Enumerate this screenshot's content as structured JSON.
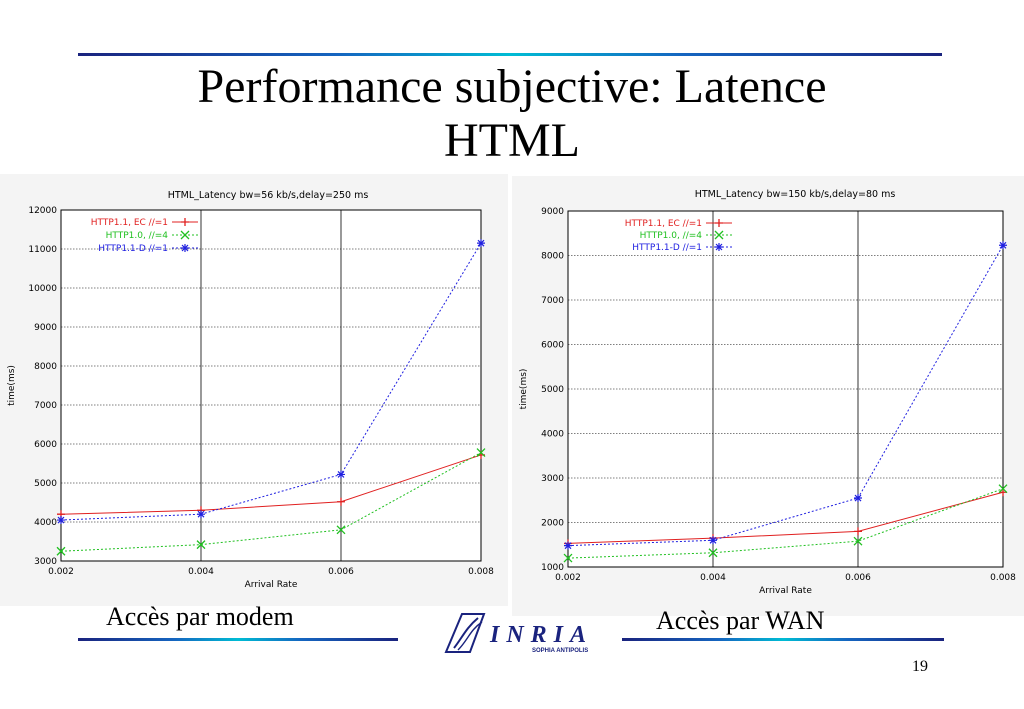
{
  "slide": {
    "title_line1": "Performance subjective: Latence",
    "title_line2": "HTML",
    "caption_left": "Accès par modem",
    "caption_right": "Accès par WAN",
    "page_number": "19",
    "logo_text": "INRIA",
    "logo_subtext": "SOPHIA ANTIPOLIS"
  },
  "colors": {
    "ec": "#e02020",
    "http10": "#20c020",
    "http11d": "#2020e0",
    "rule_dark": "#1a237e",
    "rule_light": "#00bcd4"
  },
  "chart_data": [
    {
      "type": "line",
      "title": "HTML_Latency  bw=56 kb/s,delay=250 ms",
      "xlabel": "Arrival Rate",
      "ylabel": "time(ms)",
      "xlim": [
        0.002,
        0.008
      ],
      "ylim": [
        3000,
        12000
      ],
      "x": [
        0.002,
        0.004,
        0.006,
        0.008
      ],
      "x_ticks": [
        "0.002",
        "0.004",
        "0.006",
        "0.008"
      ],
      "y_ticks": [
        "3000",
        "4000",
        "5000",
        "6000",
        "7000",
        "8000",
        "9000",
        "10000",
        "11000",
        "12000"
      ],
      "grid": true,
      "legend": "top-left",
      "series": [
        {
          "name": "HTTP1.1, EC //=1",
          "values": [
            4200,
            4300,
            4520,
            5720
          ],
          "color": "#e02020",
          "marker": "+"
        },
        {
          "name": "HTTP1.0, //=4",
          "values": [
            3250,
            3420,
            3800,
            5780
          ],
          "color": "#20c020",
          "marker": "x"
        },
        {
          "name": "HTTP1.1-D //=1",
          "values": [
            4050,
            4200,
            5220,
            11150
          ],
          "color": "#2020e0",
          "marker": "*"
        }
      ]
    },
    {
      "type": "line",
      "title": "HTML_Latency bw=150 kb/s,delay=80 ms",
      "xlabel": "Arrival Rate",
      "ylabel": "time(ms)",
      "xlim": [
        0.002,
        0.008
      ],
      "ylim": [
        1000,
        9000
      ],
      "x": [
        0.002,
        0.004,
        0.006,
        0.008
      ],
      "x_ticks": [
        "0.002",
        "0.004",
        "0.006",
        "0.008"
      ],
      "y_ticks": [
        "1000",
        "2000",
        "3000",
        "4000",
        "5000",
        "6000",
        "7000",
        "8000",
        "9000"
      ],
      "grid": true,
      "legend": "top-left",
      "series": [
        {
          "name": "HTTP1.1, EC //=1",
          "values": [
            1530,
            1650,
            1800,
            2680
          ],
          "color": "#e02020",
          "marker": "+"
        },
        {
          "name": "HTTP1.0, //=4",
          "values": [
            1200,
            1320,
            1580,
            2760
          ],
          "color": "#20c020",
          "marker": "x"
        },
        {
          "name": "HTTP1.1-D //=1",
          "values": [
            1480,
            1600,
            2550,
            8230
          ],
          "color": "#2020e0",
          "marker": "*"
        }
      ]
    }
  ]
}
